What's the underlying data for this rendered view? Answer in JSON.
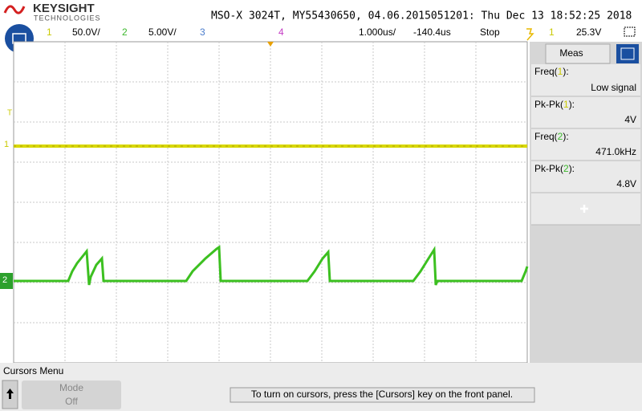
{
  "header": {
    "brand": "KEYSIGHT",
    "brand_sub": "TECHNOLOGIES",
    "instrument": "MSO-X 3024T, MY55430650, 04.06.2015051201: Thu Dec 13 18:52:25 2018"
  },
  "status_bar": {
    "ch1": "1",
    "ch1_scale": "50.0V/",
    "ch2": "2",
    "ch2_scale": "5.00V/",
    "ch3": "3",
    "ch4": "4",
    "timebase": "1.000us/",
    "delay": "-140.4us",
    "run_state": "Stop",
    "trigger_source": "1",
    "trigger_level": "25.3V"
  },
  "markers": {
    "trigger": "T",
    "ch1": "1",
    "ch2": "2"
  },
  "meas_panel": {
    "tab": "Meas",
    "rows": [
      {
        "prefix": "Freq(",
        "channel": "1",
        "suffix": "):",
        "value": "Low signal"
      },
      {
        "prefix": "Pk-Pk(",
        "channel": "1",
        "suffix": "):",
        "value": "4V"
      },
      {
        "prefix": "Freq(",
        "channel": "2",
        "suffix": "):",
        "value": "471.0kHz"
      },
      {
        "prefix": "Pk-Pk(",
        "channel": "2",
        "suffix": "):",
        "value": "4.8V"
      }
    ]
  },
  "softkeys": {
    "menu_title": "Cursors Menu",
    "mode_label": "Mode",
    "mode_value": "Off",
    "message": "To turn on cursors, press the [Cursors] key on the front panel."
  }
}
